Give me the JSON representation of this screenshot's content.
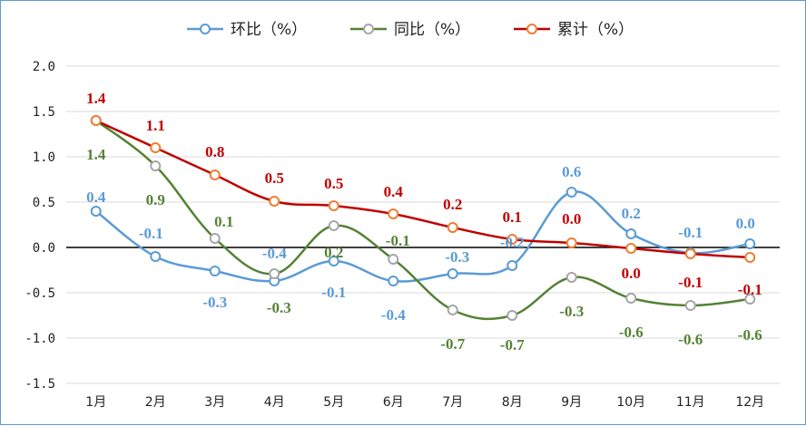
{
  "chart_data": {
    "type": "line",
    "categories": [
      "1月",
      "2月",
      "3月",
      "4月",
      "5月",
      "6月",
      "7月",
      "8月",
      "9月",
      "10月",
      "11月",
      "12月"
    ],
    "ylim": [
      -1.5,
      2.0
    ],
    "yticks": [
      "2.0",
      "1.5",
      "1.0",
      "0.5",
      "0.0",
      "-0.5",
      "-1.0",
      "-1.5"
    ],
    "grid": true,
    "legend_position": "top",
    "series": [
      {
        "name": "环比（%）",
        "color": "#5b9bd5",
        "values": [
          0.4,
          -0.1,
          -0.26,
          -0.37,
          -0.15,
          -0.37,
          -0.29,
          -0.2,
          0.61,
          0.15,
          -0.06,
          0.04
        ],
        "labels": [
          "0.4",
          "-0.1",
          "-0.3",
          "-0.4",
          "-0.1",
          "-0.4",
          "-0.3",
          "-0.2",
          "0.6",
          "0.2",
          "-0.1",
          "0.0"
        ]
      },
      {
        "name": "同比（%）",
        "color": "#548235",
        "values": [
          1.4,
          0.9,
          0.1,
          -0.29,
          0.24,
          -0.13,
          -0.69,
          -0.75,
          -0.33,
          -0.56,
          -0.64,
          -0.57
        ],
        "labels": [
          "1.4",
          "0.9",
          "0.1",
          "-0.3",
          "0.2",
          "-0.1",
          "-0.7",
          "-0.7",
          "-0.3",
          "-0.6",
          "-0.6",
          "-0.6"
        ]
      },
      {
        "name": "累计（%）",
        "color": "#c00000",
        "values": [
          1.4,
          1.1,
          0.8,
          0.51,
          0.46,
          0.37,
          0.22,
          0.09,
          0.05,
          -0.01,
          -0.07,
          -0.11
        ],
        "labels": [
          "1.4",
          "1.1",
          "0.8",
          "0.5",
          "0.5",
          "0.4",
          "0.2",
          "0.1",
          "0.0",
          "0.0",
          "-0.1",
          "-0.1"
        ]
      }
    ]
  }
}
